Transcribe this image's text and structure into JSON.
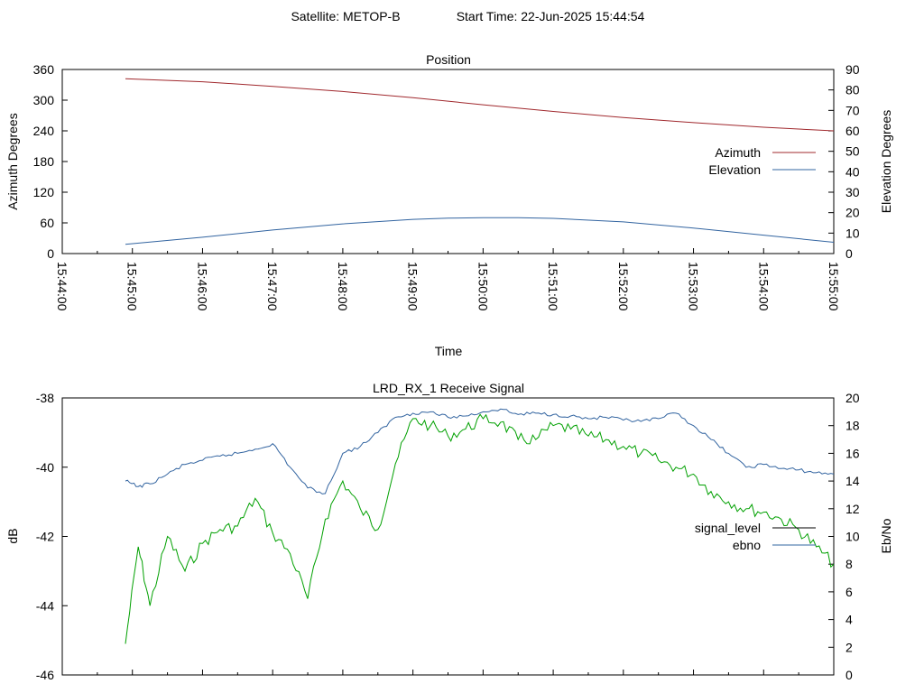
{
  "header": {
    "satellite": "Satellite: METOP-B",
    "start_time": "Start Time: 22-Jun-2025 15:44:54"
  },
  "chart_data": [
    {
      "type": "line",
      "title": "Position",
      "xlabel": "Time",
      "ylabel": "Azimuth Degrees",
      "y2label": "Elevation Degrees",
      "x_ticks": [
        "15:44:00",
        "15:45:00",
        "15:46:00",
        "15:47:00",
        "15:48:00",
        "15:49:00",
        "15:50:00",
        "15:51:00",
        "15:52:00",
        "15:53:00",
        "15:54:00",
        "15:55:00"
      ],
      "ylim": [
        0,
        360
      ],
      "y_ticks": [
        "0",
        "60",
        "120",
        "180",
        "240",
        "300",
        "360"
      ],
      "y2lim": [
        0,
        90
      ],
      "y2_ticks": [
        "0",
        "10",
        "20",
        "30",
        "40",
        "50",
        "60",
        "70",
        "80",
        "90"
      ],
      "legend_position": "right",
      "series": [
        {
          "name": "Azimuth",
          "axis": "left",
          "color": "#a0282d",
          "x": [
            "15:44:54",
            "15:46:00",
            "15:47:00",
            "15:48:00",
            "15:49:00",
            "15:50:00",
            "15:51:00",
            "15:52:00",
            "15:53:00",
            "15:54:00",
            "15:55:00"
          ],
          "y": [
            342,
            336,
            327,
            317,
            305,
            291,
            278,
            266,
            256,
            247,
            240
          ]
        },
        {
          "name": "Elevation",
          "axis": "right",
          "color": "#3264a0",
          "x": [
            "15:44:54",
            "15:46:00",
            "15:47:00",
            "15:48:00",
            "15:49:00",
            "15:49:30",
            "15:50:00",
            "15:50:30",
            "15:51:00",
            "15:52:00",
            "15:53:00",
            "15:54:00",
            "15:55:00"
          ],
          "y": [
            4.5,
            8,
            11.5,
            14.5,
            16.7,
            17.3,
            17.5,
            17.5,
            17.2,
            15.5,
            12.5,
            9,
            5.5
          ]
        }
      ]
    },
    {
      "type": "line",
      "title": "LRD_RX_1 Receive Signal",
      "ylabel": "dB",
      "y2label": "Eb/No",
      "ylim": [
        -46,
        -38
      ],
      "y_ticks": [
        "-46",
        "-44",
        "-42",
        "-40",
        "-38"
      ],
      "y2lim": [
        0,
        20
      ],
      "y2_ticks": [
        "0",
        "2",
        "4",
        "6",
        "8",
        "10",
        "12",
        "14",
        "16",
        "18",
        "20"
      ],
      "legend_position": "right",
      "series": [
        {
          "name": "signal_level",
          "axis": "left",
          "color": "#00a000",
          "legend_color": "#000000",
          "x": [
            "15:44:54",
            "15:45:05",
            "15:45:15",
            "15:45:30",
            "15:45:45",
            "15:46:00",
            "15:46:15",
            "15:46:30",
            "15:46:45",
            "15:47:00",
            "15:47:15",
            "15:47:30",
            "15:47:45",
            "15:48:00",
            "15:48:15",
            "15:48:30",
            "15:48:45",
            "15:49:00",
            "15:49:15",
            "15:49:30",
            "15:49:45",
            "15:50:00",
            "15:50:15",
            "15:50:30",
            "15:50:45",
            "15:51:00",
            "15:51:15",
            "15:51:30",
            "15:51:45",
            "15:52:00",
            "15:52:15",
            "15:52:30",
            "15:52:45",
            "15:53:00",
            "15:53:15",
            "15:53:30",
            "15:53:45",
            "15:54:00",
            "15:54:15",
            "15:54:30",
            "15:54:45",
            "15:55:00"
          ],
          "y": [
            -45.1,
            -42.3,
            -44.0,
            -42.0,
            -43.0,
            -42.2,
            -41.8,
            -41.7,
            -40.9,
            -41.9,
            -42.5,
            -43.8,
            -41.5,
            -40.4,
            -41.2,
            -41.8,
            -39.9,
            -38.6,
            -38.8,
            -39.1,
            -38.9,
            -38.6,
            -38.7,
            -39.2,
            -39.2,
            -38.8,
            -38.9,
            -39.1,
            -39.2,
            -39.4,
            -39.6,
            -39.8,
            -40.0,
            -40.2,
            -40.7,
            -41.0,
            -41.2,
            -41.3,
            -41.5,
            -41.8,
            -42.3,
            -42.8
          ]
        },
        {
          "name": "ebno",
          "axis": "right",
          "color": "#3264a0",
          "x": [
            "15:44:54",
            "15:45:05",
            "15:45:15",
            "15:45:30",
            "15:45:45",
            "15:46:00",
            "15:46:15",
            "15:46:30",
            "15:46:45",
            "15:47:00",
            "15:47:15",
            "15:47:30",
            "15:47:45",
            "15:48:00",
            "15:48:15",
            "15:48:30",
            "15:48:45",
            "15:49:00",
            "15:49:15",
            "15:49:30",
            "15:49:45",
            "15:50:00",
            "15:50:15",
            "15:50:30",
            "15:50:45",
            "15:51:00",
            "15:51:15",
            "15:51:30",
            "15:51:45",
            "15:52:00",
            "15:52:15",
            "15:52:30",
            "15:52:45",
            "15:53:00",
            "15:53:15",
            "15:53:30",
            "15:53:45",
            "15:54:00",
            "15:54:15",
            "15:54:30",
            "15:54:45",
            "15:55:00"
          ],
          "y": [
            14.0,
            13.6,
            13.8,
            14.5,
            15.2,
            15.5,
            15.8,
            16.0,
            16.3,
            16.7,
            15.0,
            13.5,
            13.1,
            16.0,
            16.5,
            17.5,
            18.6,
            18.9,
            19.0,
            18.6,
            18.7,
            19.0,
            19.2,
            18.8,
            18.9,
            18.8,
            18.7,
            18.5,
            18.6,
            18.4,
            18.3,
            18.5,
            18.9,
            18.0,
            17.0,
            16.0,
            15.0,
            15.2,
            14.9,
            14.8,
            14.6,
            14.5
          ]
        }
      ]
    }
  ]
}
